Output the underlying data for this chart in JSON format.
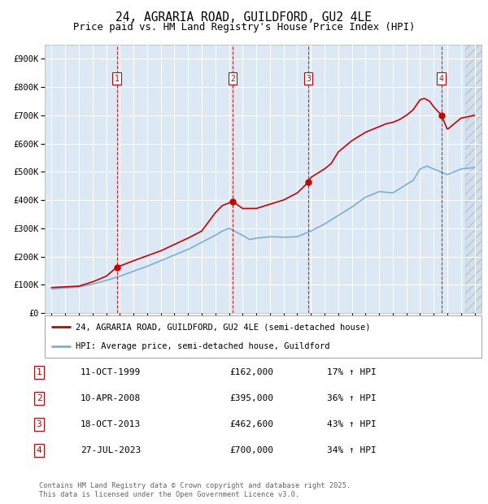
{
  "title": "24, AGRARIA ROAD, GUILDFORD, GU2 4LE",
  "subtitle": "Price paid vs. HM Land Registry's House Price Index (HPI)",
  "bg_color": "#dce9f5",
  "grid_color": "#ffffff",
  "red_color": "#cc0000",
  "blue_color": "#7bafd4",
  "purchases": [
    {
      "label": "1",
      "date_num": 1999.78,
      "price": 162000
    },
    {
      "label": "2",
      "date_num": 2008.27,
      "price": 395000
    },
    {
      "label": "3",
      "date_num": 2013.8,
      "price": 462600
    },
    {
      "label": "4",
      "date_num": 2023.57,
      "price": 700000
    }
  ],
  "table_rows": [
    [
      "1",
      "11-OCT-1999",
      "£162,000",
      "17% ↑ HPI"
    ],
    [
      "2",
      "10-APR-2008",
      "£395,000",
      "36% ↑ HPI"
    ],
    [
      "3",
      "18-OCT-2013",
      "£462,600",
      "43% ↑ HPI"
    ],
    [
      "4",
      "27-JUL-2023",
      "£700,000",
      "34% ↑ HPI"
    ]
  ],
  "legend_entries": [
    "24, AGRARIA ROAD, GUILDFORD, GU2 4LE (semi-detached house)",
    "HPI: Average price, semi-detached house, Guildford"
  ],
  "footer": "Contains HM Land Registry data © Crown copyright and database right 2025.\nThis data is licensed under the Open Government Licence v3.0.",
  "ylim": [
    0,
    950000
  ],
  "yticks": [
    0,
    100000,
    200000,
    300000,
    400000,
    500000,
    600000,
    700000,
    800000,
    900000
  ],
  "ytick_labels": [
    "£0",
    "£100K",
    "£200K",
    "£300K",
    "£400K",
    "£500K",
    "£600K",
    "£700K",
    "£800K",
    "£900K"
  ],
  "xlim_start": 1994.5,
  "xlim_end": 2026.5,
  "xticks": [
    1995,
    1996,
    1997,
    1998,
    1999,
    2000,
    2001,
    2002,
    2003,
    2004,
    2005,
    2006,
    2007,
    2008,
    2009,
    2010,
    2011,
    2012,
    2013,
    2014,
    2015,
    2016,
    2017,
    2018,
    2019,
    2020,
    2021,
    2022,
    2023,
    2024,
    2025,
    2026
  ]
}
